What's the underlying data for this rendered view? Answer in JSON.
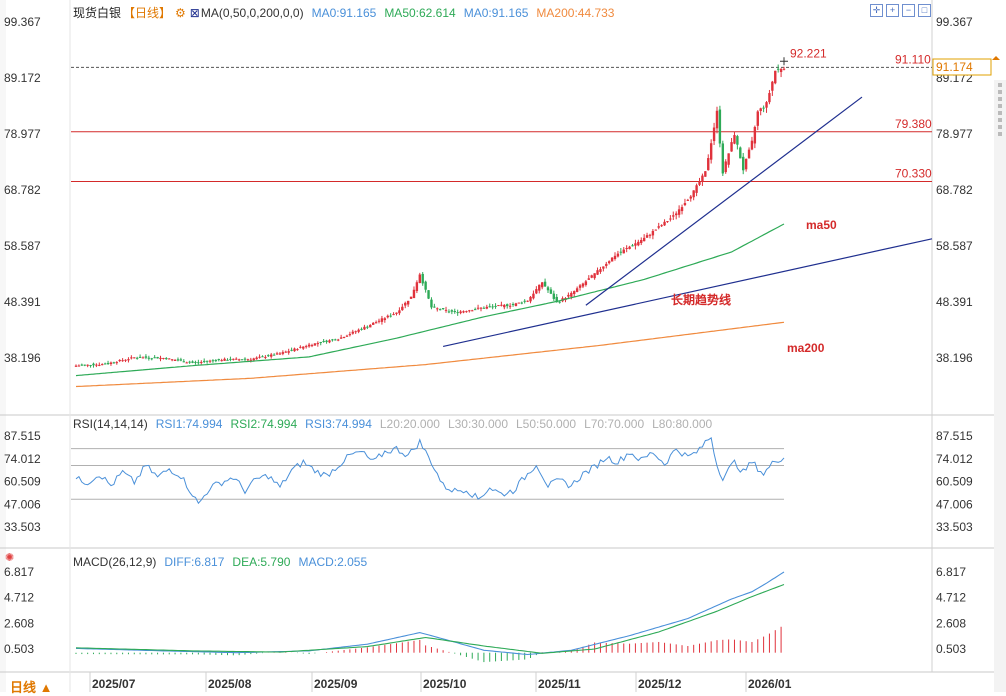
{
  "instrument": {
    "name": "现货白银",
    "period_tag": "【日线】"
  },
  "price_panel": {
    "indicator_label": "MA(0,50,0,200,0,0)",
    "ma_values": [
      {
        "label": "MA0:91.165",
        "color": "#4a90d9"
      },
      {
        "label": "MA50:62.614",
        "color": "#2eaa57"
      },
      {
        "label": "MA0:91.165",
        "color": "#4a90d9"
      },
      {
        "label": "MA200:44.733",
        "color": "#f08a3e"
      }
    ],
    "y_ticks": [
      "99.367",
      "89.172",
      "78.977",
      "68.782",
      "58.587",
      "48.391",
      "38.196"
    ],
    "tick_values": [
      99.367,
      89.172,
      78.977,
      68.782,
      58.587,
      48.391,
      38.196
    ],
    "high_label": "92.221",
    "current_price": "91.174",
    "levels": [
      {
        "label": "91.110",
        "value": 91.11,
        "style": "dashed"
      },
      {
        "label": "79.380",
        "value": 79.38,
        "style": "solid"
      },
      {
        "label": "70.330",
        "value": 70.33,
        "style": "solid"
      }
    ],
    "annotations": {
      "ma50": "ma50",
      "ma200": "ma200",
      "trend": "长期趋势线"
    },
    "colors": {
      "up": "#e0323c",
      "down": "#2eaa57",
      "ma50": "#2eaa57",
      "ma200": "#f08a3e",
      "trend": "#1f2f8f",
      "level": "#d42a2a"
    }
  },
  "rsi_panel": {
    "title": "RSI(14,14,14)",
    "values": [
      {
        "label": "RSI1:74.994",
        "color": "#4a90d9"
      },
      {
        "label": "RSI2:74.994",
        "color": "#2eaa57"
      },
      {
        "label": "RSI3:74.994",
        "color": "#4a90d9"
      },
      {
        "label": "L20:20.000",
        "color": "#b0b0b0"
      },
      {
        "label": "L30:30.000",
        "color": "#b0b0b0"
      },
      {
        "label": "L50:50.000",
        "color": "#b0b0b0"
      },
      {
        "label": "L70:70.000",
        "color": "#b0b0b0"
      },
      {
        "label": "L80:80.000",
        "color": "#b0b0b0"
      }
    ],
    "y_ticks": [
      "87.515",
      "74.012",
      "60.509",
      "47.006",
      "33.503"
    ],
    "tick_values": [
      87.515,
      74.012,
      60.509,
      47.006,
      33.503
    ]
  },
  "macd_panel": {
    "title": "MACD(26,12,9)",
    "values": [
      {
        "label": "DIFF:6.817",
        "color": "#4a90d9"
      },
      {
        "label": "DEA:5.790",
        "color": "#2eaa57"
      },
      {
        "label": "MACD:2.055",
        "color": "#4a90d9"
      }
    ],
    "y_ticks": [
      "6.817",
      "4.712",
      "2.608",
      "0.503"
    ],
    "tick_values": [
      6.817,
      4.712,
      2.608,
      0.503
    ]
  },
  "x_axis": {
    "period_button": "日线",
    "labels": [
      "2025/07",
      "2025/08",
      "2025/09",
      "2025/10",
      "2025/11",
      "2025/12",
      "2026/01"
    ]
  },
  "chart_data": {
    "type": "candlestick",
    "instrument": "现货白银",
    "x_labels": [
      "2025/07",
      "2025/08",
      "2025/09",
      "2025/10",
      "2025/11",
      "2025/12",
      "2026/01"
    ],
    "ylim": [
      34,
      101
    ],
    "anchors_close": [
      [
        0,
        36.8
      ],
      [
        10,
        37.1
      ],
      [
        20,
        38.3
      ],
      [
        30,
        38.2
      ],
      [
        40,
        37.3
      ],
      [
        50,
        37.9
      ],
      [
        60,
        38.0
      ],
      [
        70,
        39.0
      ],
      [
        80,
        40.6
      ],
      [
        90,
        41.7
      ],
      [
        100,
        44.0
      ],
      [
        110,
        46.5
      ],
      [
        115,
        49.3
      ],
      [
        118,
        53.5
      ],
      [
        122,
        47.4
      ],
      [
        130,
        46.5
      ],
      [
        140,
        47.4
      ],
      [
        150,
        47.9
      ],
      [
        155,
        48.7
      ],
      [
        160,
        52.0
      ],
      [
        165,
        48.3
      ],
      [
        170,
        49.9
      ],
      [
        178,
        53.5
      ],
      [
        185,
        56.9
      ],
      [
        195,
        60.0
      ],
      [
        205,
        64.0
      ],
      [
        212,
        68.5
      ],
      [
        216,
        72.0
      ],
      [
        218,
        77.5
      ],
      [
        220,
        83.0
      ],
      [
        222,
        72.0
      ],
      [
        226,
        79.0
      ],
      [
        229,
        72.5
      ],
      [
        232,
        77.5
      ],
      [
        234,
        83.0
      ],
      [
        237,
        84.5
      ],
      [
        240,
        90.5
      ],
      [
        243,
        91.2
      ]
    ],
    "anchors_ma50": [
      [
        0,
        35.0
      ],
      [
        40,
        36.8
      ],
      [
        80,
        38.4
      ],
      [
        110,
        41.8
      ],
      [
        140,
        45.7
      ],
      [
        165,
        48.5
      ],
      [
        195,
        52.5
      ],
      [
        225,
        57.5
      ],
      [
        243,
        62.6
      ]
    ],
    "anchors_ma200": [
      [
        0,
        33.0
      ],
      [
        60,
        34.5
      ],
      [
        120,
        37.0
      ],
      [
        180,
        40.5
      ],
      [
        243,
        44.7
      ]
    ],
    "rsi_anchors": [
      [
        0,
        62
      ],
      [
        4,
        60
      ],
      [
        8,
        65
      ],
      [
        12,
        58
      ],
      [
        16,
        66
      ],
      [
        20,
        60
      ],
      [
        24,
        70
      ],
      [
        28,
        63
      ],
      [
        32,
        68
      ],
      [
        36,
        64
      ],
      [
        40,
        53
      ],
      [
        42,
        47
      ],
      [
        46,
        57
      ],
      [
        50,
        60
      ],
      [
        54,
        63
      ],
      [
        58,
        55
      ],
      [
        62,
        62
      ],
      [
        66,
        64
      ],
      [
        70,
        57
      ],
      [
        74,
        67
      ],
      [
        78,
        72
      ],
      [
        82,
        67
      ],
      [
        86,
        64
      ],
      [
        90,
        70
      ],
      [
        94,
        76
      ],
      [
        98,
        78
      ],
      [
        102,
        72
      ],
      [
        106,
        78
      ],
      [
        110,
        80
      ],
      [
        114,
        76
      ],
      [
        118,
        84
      ],
      [
        122,
        72
      ],
      [
        126,
        58
      ],
      [
        130,
        55
      ],
      [
        134,
        56
      ],
      [
        138,
        50
      ],
      [
        142,
        57
      ],
      [
        146,
        53
      ],
      [
        150,
        55
      ],
      [
        154,
        63
      ],
      [
        158,
        71
      ],
      [
        162,
        58
      ],
      [
        166,
        61
      ],
      [
        170,
        58
      ],
      [
        174,
        65
      ],
      [
        178,
        69
      ],
      [
        182,
        75
      ],
      [
        186,
        72
      ],
      [
        190,
        78
      ],
      [
        194,
        73
      ],
      [
        198,
        78
      ],
      [
        202,
        71
      ],
      [
        206,
        80
      ],
      [
        210,
        75
      ],
      [
        214,
        79
      ],
      [
        216,
        84
      ],
      [
        218,
        87
      ],
      [
        220,
        70
      ],
      [
        222,
        63
      ],
      [
        226,
        72
      ],
      [
        229,
        66
      ],
      [
        232,
        72
      ],
      [
        236,
        65
      ],
      [
        240,
        73
      ],
      [
        243,
        75
      ]
    ],
    "dif_anchors": [
      [
        0,
        0.55
      ],
      [
        30,
        0.35
      ],
      [
        55,
        0.2
      ],
      [
        80,
        0.35
      ],
      [
        100,
        0.9
      ],
      [
        118,
        1.85
      ],
      [
        125,
        1.4
      ],
      [
        140,
        0.4
      ],
      [
        155,
        0.05
      ],
      [
        170,
        0.4
      ],
      [
        190,
        1.6
      ],
      [
        210,
        3.0
      ],
      [
        225,
        4.6
      ],
      [
        232,
        5.2
      ],
      [
        237,
        5.9
      ],
      [
        243,
        6.82
      ]
    ],
    "dea_anchors": [
      [
        0,
        0.6
      ],
      [
        40,
        0.35
      ],
      [
        70,
        0.25
      ],
      [
        100,
        0.7
      ],
      [
        120,
        1.45
      ],
      [
        140,
        0.75
      ],
      [
        160,
        0.15
      ],
      [
        178,
        0.5
      ],
      [
        200,
        1.9
      ],
      [
        220,
        3.6
      ],
      [
        232,
        4.8
      ],
      [
        243,
        5.79
      ]
    ],
    "bar_count": 244
  }
}
